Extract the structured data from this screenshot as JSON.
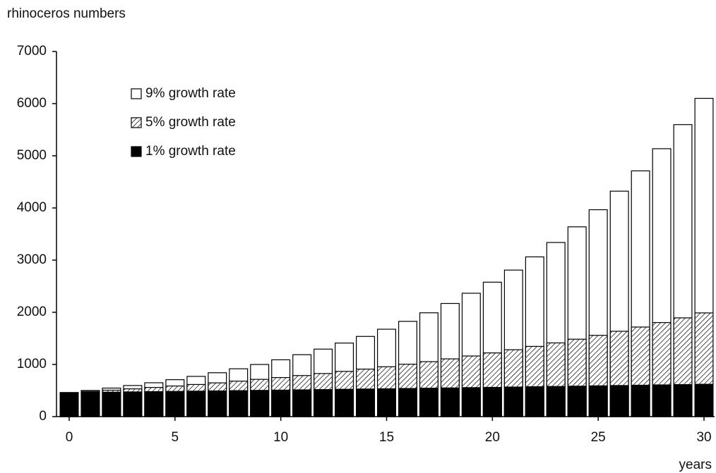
{
  "chart_data": {
    "type": "bar",
    "overlap": true,
    "ylabel": "rhinoceros numbers",
    "xlabel": "years",
    "x": [
      0,
      1,
      2,
      3,
      4,
      5,
      6,
      7,
      8,
      9,
      10,
      11,
      12,
      13,
      14,
      15,
      16,
      17,
      18,
      19,
      20,
      21,
      22,
      23,
      24,
      25,
      26,
      27,
      28,
      29,
      30
    ],
    "series": [
      {
        "name": "9% growth rate",
        "color": "#ffffff",
        "values": [
          460,
          501,
          547,
          596,
          649,
          708,
          771,
          841,
          917,
          999,
          1089,
          1187,
          1294,
          1410,
          1537,
          1675,
          1826,
          1990,
          2169,
          2365,
          2577,
          2809,
          3062,
          3338,
          3638,
          3966,
          4322,
          4711,
          5136,
          5598,
          6101
        ]
      },
      {
        "name": "5% growth rate",
        "color": "#ffffff",
        "fill": "hatch",
        "values": [
          460,
          483,
          507,
          532,
          559,
          587,
          616,
          647,
          680,
          714,
          749,
          787,
          826,
          867,
          911,
          956,
          1004,
          1054,
          1107,
          1162,
          1221,
          1282,
          1346,
          1413,
          1484,
          1558,
          1636,
          1717,
          1803,
          1893,
          1988
        ]
      },
      {
        "name": "1% growth rate",
        "color": "#000000",
        "values": [
          460,
          465,
          469,
          474,
          479,
          483,
          488,
          493,
          498,
          503,
          508,
          513,
          518,
          524,
          529,
          534,
          539,
          545,
          550,
          556,
          561,
          567,
          573,
          578,
          584,
          590,
          596,
          602,
          608,
          614,
          620
        ]
      }
    ],
    "xlim": [
      -0.6,
      30.5
    ],
    "xticks": [
      0,
      5,
      10,
      15,
      20,
      25,
      30
    ],
    "ylim": [
      0,
      7000
    ],
    "yticks": [
      0,
      1000,
      2000,
      3000,
      4000,
      5000,
      6000,
      7000
    ],
    "legend": "top-left"
  }
}
